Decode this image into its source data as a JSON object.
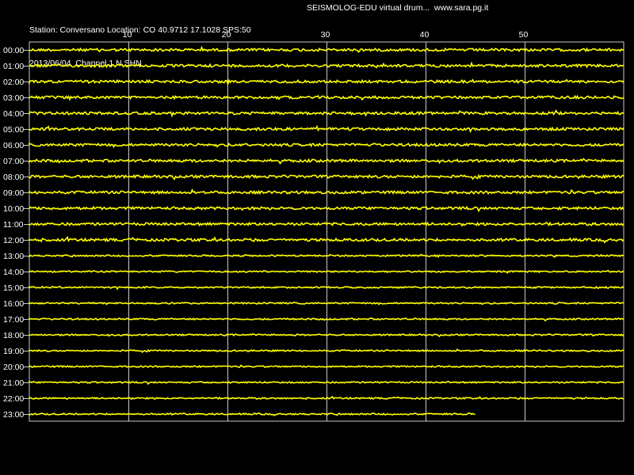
{
  "header": {
    "line1": "Station: Conversano Location: CO 40.9712 17.1028 SPS:50",
    "line2": "2013/06/04  Channel 1 N SHN",
    "right": "SEISMOLOG-EDU virtual drum...  www.sara.pg.it"
  },
  "chart_data": {
    "type": "line",
    "title": "",
    "xlabel": "",
    "ylabel": "",
    "x_tick_labels": [
      "10",
      "20",
      "30",
      "40",
      "50"
    ],
    "x_ticks": [
      10,
      20,
      30,
      40,
      50
    ],
    "xlim": [
      0,
      60
    ],
    "row_labels": [
      "00:00",
      "01:00",
      "02:00",
      "03:00",
      "04:00",
      "05:00",
      "06:00",
      "07:00",
      "08:00",
      "09:00",
      "10:00",
      "11:00",
      "12:00",
      "13:00",
      "14:00",
      "15:00",
      "16:00",
      "17:00",
      "18:00",
      "19:00",
      "20:00",
      "21:00",
      "22:00",
      "23:00"
    ],
    "trace_end_minutes": [
      60,
      60,
      60,
      60,
      60,
      60,
      60,
      60,
      60,
      60,
      60,
      60,
      60,
      60,
      60,
      60,
      60,
      60,
      60,
      60,
      60,
      60,
      60,
      45
    ],
    "grid": true,
    "colors": {
      "background": "#000000",
      "trace": "#ffff00",
      "grid": "#c8c8c8",
      "text": "#ffffff"
    }
  }
}
